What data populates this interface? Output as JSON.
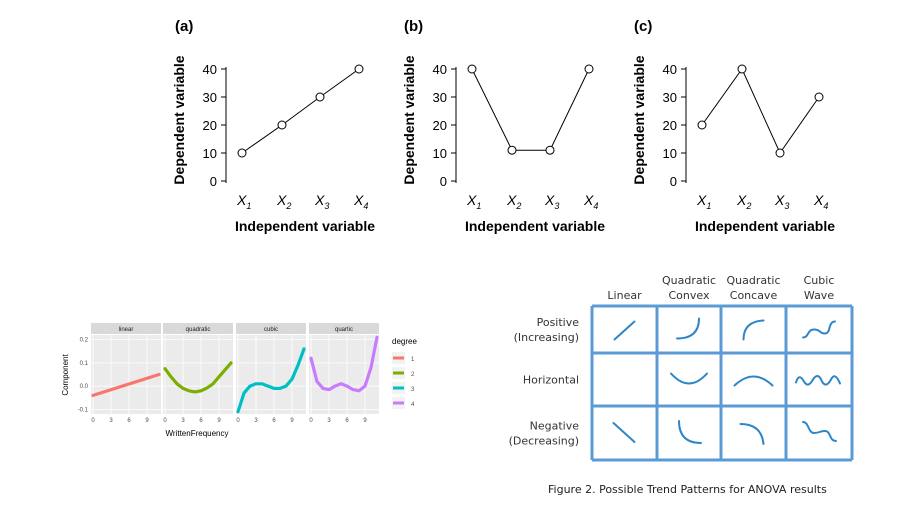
{
  "chart_data": [
    {
      "type": "line",
      "panel": "(a)",
      "categories": [
        "X1",
        "X2",
        "X3",
        "X4"
      ],
      "values": [
        10,
        20,
        30,
        40
      ],
      "ylabel": "Dependent variable",
      "xlabel": "Independent variable",
      "ylim": [
        0,
        40
      ],
      "yticks": [
        0,
        10,
        20,
        30,
        40
      ]
    },
    {
      "type": "line",
      "panel": "(b)",
      "categories": [
        "X1",
        "X2",
        "X3",
        "X4"
      ],
      "values": [
        40,
        11,
        11,
        40
      ],
      "ylabel": "Dependent variable",
      "xlabel": "Independent variable",
      "ylim": [
        0,
        40
      ],
      "yticks": [
        0,
        10,
        20,
        30,
        40
      ]
    },
    {
      "type": "line",
      "panel": "(c)",
      "categories": [
        "X1",
        "X2",
        "X3",
        "X4"
      ],
      "values": [
        20,
        40,
        10,
        30
      ],
      "ylabel": "Dependent variable",
      "xlabel": "Independent variable",
      "ylim": [
        0,
        40
      ],
      "yticks": [
        0,
        10,
        20,
        30,
        40
      ]
    },
    {
      "type": "line",
      "facets": [
        "linear",
        "quadratic",
        "cubic",
        "quartic"
      ],
      "xlabel": "WrittenFrequency",
      "ylabel": "Component",
      "xticks": [
        0,
        3,
        6,
        9
      ],
      "yticks": [
        -0.1,
        0.0,
        0.1,
        0.2
      ],
      "xlim": [
        0,
        11
      ],
      "ylim": [
        -0.12,
        0.22
      ],
      "legend_title": "degree",
      "legend_position": "right",
      "series": [
        {
          "name": "1",
          "color": "#F8766D",
          "x": [
            0,
            11
          ],
          "y": [
            -0.04,
            0.05
          ]
        },
        {
          "name": "2",
          "color": "#7CAE00",
          "x": [
            0,
            1,
            2,
            3,
            4,
            5,
            6,
            7,
            8,
            9,
            10,
            11
          ],
          "y": [
            0.075,
            0.04,
            0.01,
            -0.01,
            -0.02,
            -0.025,
            -0.02,
            -0.008,
            0.01,
            0.04,
            0.07,
            0.1
          ]
        },
        {
          "name": "3",
          "color": "#00BFC4",
          "x": [
            0,
            1,
            2,
            3,
            4,
            5,
            6,
            7,
            8,
            9,
            10,
            11
          ],
          "y": [
            -0.11,
            -0.03,
            0.0,
            0.01,
            0.01,
            0.0,
            -0.01,
            -0.01,
            0.0,
            0.03,
            0.09,
            0.16
          ]
        },
        {
          "name": "4",
          "color": "#C77CFF",
          "x": [
            0,
            1,
            2,
            3,
            4,
            5,
            6,
            7,
            8,
            9,
            10,
            11
          ],
          "y": [
            0.12,
            0.02,
            -0.01,
            -0.015,
            0.0,
            0.01,
            0.0,
            -0.015,
            -0.02,
            0.0,
            0.08,
            0.21
          ]
        }
      ]
    },
    {
      "type": "table",
      "columns": [
        "Linear",
        "Quadratic\nConvex",
        "Quadratic\nConcave",
        "Cubic\nWave"
      ],
      "rows": [
        "Positive\n(Increasing)",
        "Horizontal",
        "Negative\n(Decreasing)"
      ],
      "cells": [
        [
          "up-line",
          "convex-up",
          "concave-up",
          "wave-up"
        ],
        [
          "",
          "u-shape",
          "arch",
          "wave-flat"
        ],
        [
          "down-line",
          "convex-down",
          "concave-down",
          "wave-down"
        ]
      ],
      "border_color": "#5B9BD5",
      "stroke_color": "#2E86C8",
      "caption": "Figure 2. Possible Trend Patterns for ANOVA results"
    }
  ]
}
